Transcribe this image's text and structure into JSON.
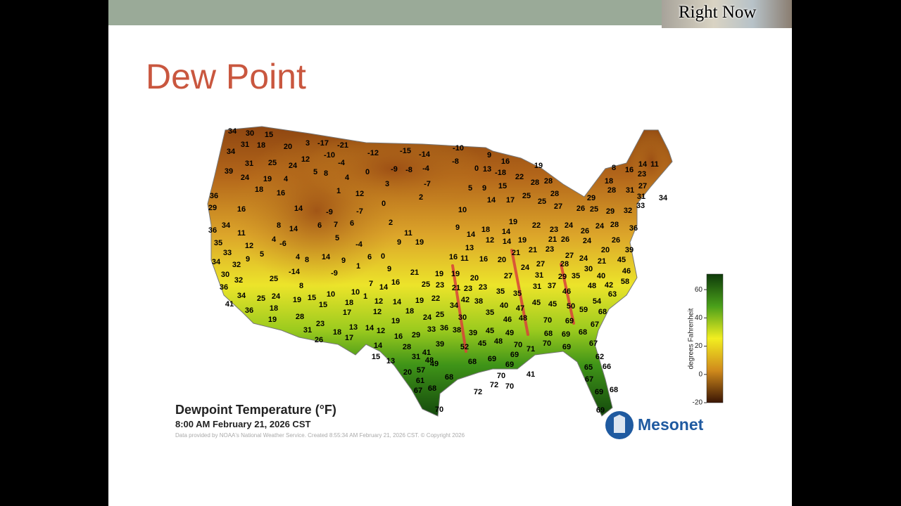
{
  "header": {
    "badge": "Right Now"
  },
  "slide": {
    "title": "Dew Point"
  },
  "map": {
    "title": "Dewpoint Temperature (°F)",
    "subtitle": "8:00 AM February 21, 2026 CST",
    "credit": "Data provided by NOAA's National Weather Service. Created 8:55:34 AM February 21, 2026 CST. © Copyright 2026",
    "logo": "Mesonet",
    "legend": {
      "label": "degrees Fahrenheit",
      "range": [
        -20,
        71
      ],
      "ticks": [
        -20,
        0,
        20,
        40,
        60
      ]
    },
    "stations": [
      34,
      30,
      15,
      31,
      18,
      20,
      3,
      -17,
      -21,
      34,
      12,
      -10,
      -12,
      -15,
      -14,
      -10,
      9,
      31,
      25,
      24,
      -4,
      -8,
      -8,
      16,
      19,
      39,
      24,
      5,
      8,
      0,
      -9,
      -4,
      0,
      13,
      -18,
      22,
      4,
      19,
      4,
      3,
      -7,
      28,
      28,
      8,
      16,
      14,
      11,
      23,
      18,
      27,
      31,
      31,
      34,
      36,
      18,
      16,
      1,
      12,
      0,
      2,
      5,
      9,
      15,
      25,
      28,
      29,
      28,
      29,
      16,
      14,
      -9,
      -7,
      10,
      14,
      17,
      25,
      27,
      26,
      25,
      29,
      32,
      33,
      36,
      34,
      11,
      8,
      14,
      6,
      7,
      6,
      2,
      11,
      9,
      14,
      18,
      14,
      19,
      22,
      23,
      24,
      26,
      24,
      28,
      36,
      35,
      33,
      12,
      4,
      -6,
      5,
      -4,
      9,
      19,
      13,
      12,
      14,
      19,
      21,
      26,
      24,
      26,
      39,
      34,
      32,
      9,
      5,
      4,
      14,
      9,
      6,
      0,
      16,
      11,
      16,
      20,
      21,
      24,
      27,
      21,
      23,
      27,
      24,
      21,
      20,
      45,
      30,
      36,
      32,
      25,
      -14,
      1,
      9,
      21,
      19,
      19,
      20,
      27,
      31,
      28,
      29,
      35,
      30,
      40,
      46,
      58,
      8,
      -9,
      8,
      25,
      23,
      21,
      23,
      23,
      35,
      35,
      31,
      37,
      46,
      48,
      42,
      63,
      41,
      34,
      25,
      24,
      19,
      15,
      10,
      10,
      7,
      14,
      16,
      18,
      1,
      12,
      14,
      19,
      22,
      34,
      42,
      38,
      40,
      47,
      45,
      45,
      50,
      59,
      54,
      68,
      36,
      18,
      15,
      17,
      12,
      18,
      24,
      25,
      30,
      35,
      46,
      48,
      70,
      69,
      67,
      19,
      28,
      23,
      19,
      33,
      36,
      38,
      39,
      45,
      49,
      68,
      69,
      68,
      31,
      18,
      17,
      13,
      14,
      12,
      16,
      29,
      26,
      39,
      52,
      45,
      48,
      70,
      71,
      70,
      69,
      67,
      14,
      28,
      41,
      31,
      15,
      13,
      48,
      68,
      69,
      69,
      62,
      49,
      57,
      20,
      68,
      70,
      69,
      41,
      65,
      66,
      67,
      61,
      72,
      70,
      67,
      68,
      72,
      69,
      68,
      70,
      69
    ]
  }
}
